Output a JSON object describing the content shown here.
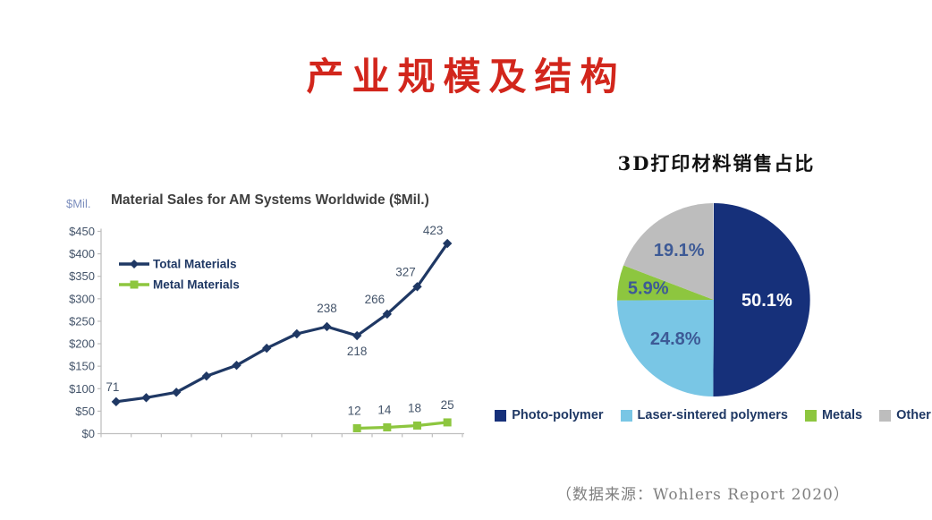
{
  "slide": {
    "title": "产业规模及结构",
    "title_color": "#D2261C",
    "source_note": "（数据来源：Wohlers Report 2020）",
    "source_note_color": "#7F7F7F",
    "background_color": "#FFFFFF"
  },
  "line_chart_block": {
    "unit_label": "$Mil.",
    "unit_label_color": "#7D8FBE",
    "title": "Material Sales for AM Systems Worldwide ($Mil.)",
    "title_color": "#3F3F3F",
    "axis_color": "#BFBFBF",
    "tick_label_color": "#44546A",
    "point_label_color": "#44546A",
    "legend_text_color": "#1F3864"
  },
  "pie_block": {
    "title": "3D打印材料销售占比",
    "title_color": "#111111",
    "legend_text_color": "#1F3864"
  },
  "chart_data": [
    {
      "type": "line",
      "title": "Material Sales for AM Systems Worldwide ($Mil.)",
      "xlabel": "",
      "ylabel": "$Mil.",
      "ylim": [
        0,
        450
      ],
      "y_tick_step": 50,
      "y_tick_labels": [
        "$0",
        "$50",
        "$100",
        "$150",
        "$200",
        "$250",
        "$300",
        "$350",
        "$400",
        "$450"
      ],
      "n_categories": 12,
      "x_tick_labels": [],
      "grid": false,
      "legend_position": "upper-left-inside",
      "series": [
        {
          "name": "Total Materials",
          "color": "#1F3864",
          "marker": "diamond",
          "values": [
            71,
            80,
            92,
            128,
            152,
            190,
            222,
            238,
            218,
            266,
            327,
            423
          ],
          "labels": [
            {
              "index": 0,
              "dx": -4,
              "dy": -12
            },
            {
              "index": 7,
              "dx": 0,
              "dy": -16
            },
            {
              "index": 8,
              "dx": 0,
              "dy": 22
            },
            {
              "index": 9,
              "dx": -14,
              "dy": -12
            },
            {
              "index": 10,
              "dx": -13,
              "dy": -12
            },
            {
              "index": 11,
              "dx": -16,
              "dy": -10
            }
          ]
        },
        {
          "name": "Metal Materials",
          "color": "#8DC63F",
          "marker": "square",
          "values": [
            null,
            null,
            null,
            null,
            null,
            null,
            null,
            null,
            12,
            14,
            18,
            25
          ],
          "labels": [
            {
              "index": 8,
              "dx": -3,
              "dy": -15
            },
            {
              "index": 9,
              "dx": -3,
              "dy": -15
            },
            {
              "index": 10,
              "dx": -3,
              "dy": -15
            },
            {
              "index": 11,
              "dx": 0,
              "dy": -15
            }
          ]
        }
      ]
    },
    {
      "type": "pie",
      "title": "3D打印材料销售占比",
      "start_angle_deg": 0,
      "direction": "clockwise",
      "legend_position": "bottom",
      "slices": [
        {
          "label": "Photo-polymer",
          "value": 50.1,
          "pct_text": "50.1%",
          "color": "#16307A",
          "text_color": "#FFFFFF",
          "label_r": 0.55
        },
        {
          "label": "Laser-sintered polymers",
          "value": 24.8,
          "pct_text": "24.8%",
          "color": "#79C6E5",
          "text_color": "#3D5A96",
          "label_r": 0.56
        },
        {
          "label": "Metals",
          "value": 5.9,
          "pct_text": "5.9%",
          "color": "#8DC63F",
          "text_color": "#3D5A96",
          "label_r": 0.69
        },
        {
          "label": "Other",
          "value": 19.1,
          "pct_text": "19.1%",
          "color": "#BDBDBD",
          "text_color": "#3D5A96",
          "label_r": 0.63
        }
      ]
    }
  ]
}
